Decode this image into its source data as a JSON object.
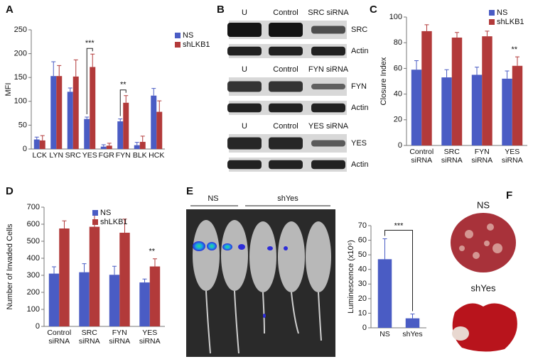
{
  "chart_data": [
    {
      "type": "bar",
      "panel": "A",
      "ylabel": "MFI",
      "categories": [
        "LCK",
        "LYN",
        "SRC",
        "YES",
        "FGR",
        "FYN",
        "BLK",
        "HCK"
      ],
      "series": [
        {
          "name": "NS",
          "color": "#4a5cc4",
          "values": [
            20,
            153,
            120,
            63,
            5,
            58,
            8,
            112
          ],
          "errors": [
            5,
            30,
            8,
            4,
            4,
            5,
            6,
            15
          ]
        },
        {
          "name": "shLKB1",
          "color": "#b23a3a",
          "values": [
            18,
            153,
            152,
            172,
            7,
            97,
            15,
            78
          ],
          "errors": [
            10,
            22,
            35,
            27,
            5,
            15,
            12,
            23
          ]
        }
      ],
      "ylim": [
        0,
        250
      ],
      "yticks": [
        0,
        50,
        100,
        150,
        200,
        250
      ],
      "annotations": [
        "***",
        "**"
      ]
    },
    {
      "type": "bar",
      "panel": "C",
      "ylabel": "Closure Index",
      "categories": [
        "Control siRNA",
        "SRC siRNA",
        "FYN siRNA",
        "YES siRNA"
      ],
      "series": [
        {
          "name": "NS",
          "color": "#4a5cc4",
          "values": [
            59,
            53,
            55,
            52
          ],
          "errors": [
            7,
            6,
            6,
            6
          ]
        },
        {
          "name": "shLKB1",
          "color": "#b23a3a",
          "values": [
            89,
            84,
            85,
            62
          ],
          "errors": [
            5,
            4,
            4,
            7
          ]
        }
      ],
      "ylim": [
        0,
        100
      ],
      "yticks": [
        0,
        20,
        40,
        60,
        80,
        100
      ],
      "annotations": [
        "**"
      ]
    },
    {
      "type": "bar",
      "panel": "D",
      "ylabel": "Number of Invaded Cells",
      "categories": [
        "Control siRNA",
        "SRC siRNA",
        "FYN siRNA",
        "YES siRNA"
      ],
      "series": [
        {
          "name": "NS",
          "color": "#4a5cc4",
          "values": [
            310,
            318,
            303,
            258
          ],
          "errors": [
            40,
            50,
            50,
            20
          ]
        },
        {
          "name": "shLKB1",
          "color": "#b23a3a",
          "values": [
            575,
            585,
            550,
            352
          ],
          "errors": [
            45,
            85,
            80,
            45
          ]
        }
      ],
      "ylim": [
        0,
        700
      ],
      "yticks": [
        0,
        100,
        200,
        300,
        400,
        500,
        600,
        700
      ],
      "annotations": [
        "**"
      ]
    },
    {
      "type": "bar",
      "panel": "E",
      "ylabel": "Luminescence (x10⁶)",
      "categories": [
        "NS",
        "shYes"
      ],
      "color": "#4a5cc4",
      "values": [
        47,
        6.5
      ],
      "errors": [
        14,
        3
      ],
      "ylim": [
        0,
        70
      ],
      "yticks": [
        0,
        10,
        20,
        30,
        40,
        50,
        60,
        70
      ],
      "annotations": [
        "***"
      ]
    }
  ],
  "blots": {
    "panel": "B",
    "groups": [
      {
        "lanes": [
          "U",
          "Control",
          "SRC siRNA"
        ],
        "rows": [
          "SRC",
          "Actin"
        ]
      },
      {
        "lanes": [
          "U",
          "Control",
          "FYN siRNA"
        ],
        "rows": [
          "FYN",
          "Actin"
        ]
      },
      {
        "lanes": [
          "U",
          "Control",
          "YES siRNA"
        ],
        "rows": [
          "YES",
          "Actin"
        ]
      }
    ]
  },
  "imaging": {
    "groups": [
      "NS",
      "shYes"
    ]
  },
  "tumors": {
    "panel": "F",
    "labels": [
      "NS",
      "shYes"
    ]
  }
}
